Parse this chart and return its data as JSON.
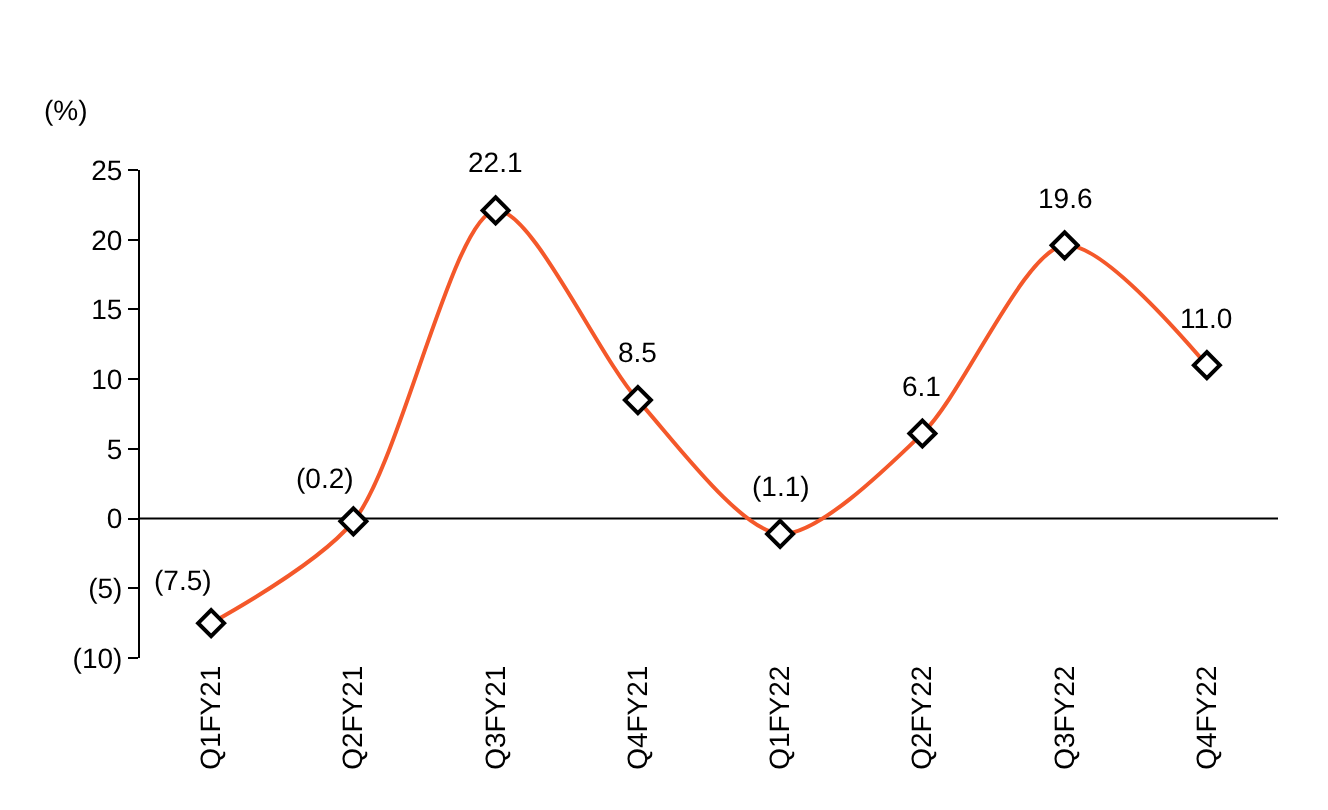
{
  "chart_data": {
    "type": "line",
    "ylabel": "(%)",
    "categories": [
      "Q1FY21",
      "Q2FY21",
      "Q3FY21",
      "Q4FY21",
      "Q1FY22",
      "Q2FY22",
      "Q3FY22",
      "Q4FY22"
    ],
    "series": [
      {
        "color": "#f4582a",
        "values": [
          -7.5,
          -0.2,
          22.1,
          8.5,
          -1.1,
          6.1,
          19.6,
          11.0
        ],
        "value_labels": [
          "(7.5)",
          "(0.2)",
          "22.1",
          "8.5",
          "(1.1)",
          "6.1",
          "19.6",
          "11.0"
        ]
      }
    ],
    "ylim": [
      -10,
      25
    ],
    "yticks": [
      {
        "value": -10,
        "label": "(10)"
      },
      {
        "value": -5,
        "label": "(5)"
      },
      0,
      5,
      10,
      15,
      20,
      25
    ],
    "ref_lines": [
      {
        "axis": "y",
        "value": 0,
        "color": "#000000"
      }
    ],
    "marker": "diamond",
    "grid": false,
    "legend": false
  }
}
